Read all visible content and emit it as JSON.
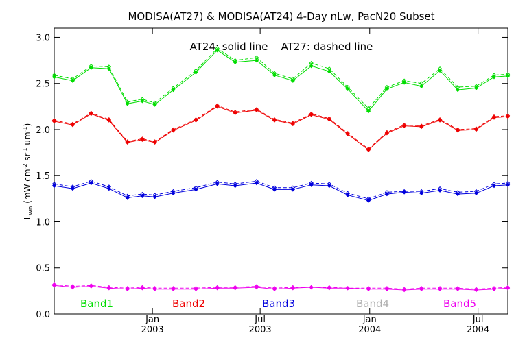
{
  "chart_data": {
    "type": "line",
    "title": "MODISA(AT27) & MODISA(AT24) 4-Day nLw, PacN20 Subset",
    "annotation": "AT24: solid line    AT27: dashed line",
    "ylabel": {
      "main": "L",
      "sub": "wn",
      "units": "(mW cm",
      "exp1": "-2",
      "mid": " sr",
      "exp2": "-1",
      "mid2": " um",
      "exp3": "-1",
      "end": ")"
    },
    "ylim": [
      0.0,
      3.1
    ],
    "yticks": [
      {
        "v": 0.0,
        "label": "0.0"
      },
      {
        "v": 0.5,
        "label": "0.5"
      },
      {
        "v": 1.0,
        "label": "1.0"
      },
      {
        "v": 1.5,
        "label": "1.5"
      },
      {
        "v": 2.0,
        "label": "2.0"
      },
      {
        "v": 2.5,
        "label": "2.5"
      },
      {
        "v": 3.0,
        "label": "3.0"
      }
    ],
    "xlim": [
      "2002-07-20",
      "2004-08-20"
    ],
    "xticks": [
      {
        "date": "2003-01-01",
        "month": "Jan",
        "year": "2003"
      },
      {
        "date": "2003-07-01",
        "month": "Jul",
        "year": "2003"
      },
      {
        "date": "2004-01-01",
        "month": "Jan",
        "year": "2004"
      },
      {
        "date": "2004-07-01",
        "month": "Jul",
        "year": "2004"
      }
    ],
    "x": [
      "2002-07-20",
      "2002-08-20",
      "2002-09-20",
      "2002-10-20",
      "2002-11-20",
      "2002-12-15",
      "2003-01-05",
      "2003-02-05",
      "2003-03-15",
      "2003-04-20",
      "2003-05-20",
      "2003-06-25",
      "2003-07-25",
      "2003-08-25",
      "2003-09-25",
      "2003-10-25",
      "2003-11-25",
      "2003-12-30",
      "2004-01-30",
      "2004-02-28",
      "2004-03-28",
      "2004-04-28",
      "2004-05-28",
      "2004-06-28",
      "2004-07-28",
      "2004-08-20"
    ],
    "series": [
      {
        "name": "Band1",
        "color": "#00dd00",
        "solid": [
          2.57,
          2.53,
          2.67,
          2.66,
          2.28,
          2.31,
          2.27,
          2.43,
          2.62,
          2.86,
          2.73,
          2.75,
          2.59,
          2.53,
          2.69,
          2.63,
          2.44,
          2.2,
          2.44,
          2.51,
          2.47,
          2.64,
          2.43,
          2.45,
          2.57,
          2.58
        ],
        "dashed": [
          2.59,
          2.55,
          2.69,
          2.68,
          2.3,
          2.33,
          2.29,
          2.45,
          2.64,
          2.88,
          2.75,
          2.78,
          2.61,
          2.55,
          2.72,
          2.66,
          2.46,
          2.23,
          2.46,
          2.53,
          2.5,
          2.66,
          2.46,
          2.47,
          2.59,
          2.6
        ]
      },
      {
        "name": "Band2",
        "color": "#ee0000",
        "solid": [
          2.09,
          2.05,
          2.17,
          2.1,
          1.86,
          1.89,
          1.86,
          1.99,
          2.1,
          2.25,
          2.18,
          2.21,
          2.1,
          2.06,
          2.16,
          2.11,
          1.95,
          1.78,
          1.96,
          2.04,
          2.03,
          2.1,
          1.99,
          2.0,
          2.13,
          2.14
        ],
        "dashed": [
          2.1,
          2.06,
          2.18,
          2.11,
          1.87,
          1.9,
          1.87,
          2.0,
          2.11,
          2.26,
          2.19,
          2.22,
          2.11,
          2.07,
          2.17,
          2.12,
          1.96,
          1.79,
          1.97,
          2.05,
          2.04,
          2.11,
          2.0,
          2.01,
          2.14,
          2.15
        ]
      },
      {
        "name": "Band3",
        "color": "#0000dd",
        "solid": [
          1.39,
          1.36,
          1.42,
          1.36,
          1.26,
          1.28,
          1.27,
          1.31,
          1.35,
          1.41,
          1.39,
          1.42,
          1.35,
          1.35,
          1.4,
          1.39,
          1.29,
          1.23,
          1.3,
          1.32,
          1.31,
          1.34,
          1.3,
          1.31,
          1.39,
          1.4
        ],
        "dashed": [
          1.41,
          1.38,
          1.44,
          1.38,
          1.28,
          1.3,
          1.29,
          1.33,
          1.37,
          1.43,
          1.41,
          1.44,
          1.37,
          1.37,
          1.42,
          1.41,
          1.31,
          1.25,
          1.32,
          1.33,
          1.33,
          1.36,
          1.32,
          1.33,
          1.41,
          1.42
        ]
      },
      {
        "name": "Band4",
        "color": "#b0b0b0",
        "solid": [],
        "dashed": []
      },
      {
        "name": "Band5",
        "color": "#ee00ee",
        "solid": [
          0.31,
          0.29,
          0.3,
          0.28,
          0.27,
          0.28,
          0.27,
          0.27,
          0.27,
          0.28,
          0.28,
          0.29,
          0.27,
          0.28,
          0.29,
          0.28,
          0.28,
          0.27,
          0.27,
          0.26,
          0.27,
          0.27,
          0.27,
          0.26,
          0.27,
          0.28
        ],
        "dashed": [
          0.32,
          0.3,
          0.31,
          0.29,
          0.28,
          0.29,
          0.28,
          0.28,
          0.28,
          0.29,
          0.29,
          0.3,
          0.28,
          0.29,
          0.29,
          0.29,
          0.28,
          0.28,
          0.28,
          0.27,
          0.28,
          0.28,
          0.28,
          0.27,
          0.28,
          0.29
        ]
      }
    ],
    "grid": false,
    "legend_position": "bottom"
  }
}
